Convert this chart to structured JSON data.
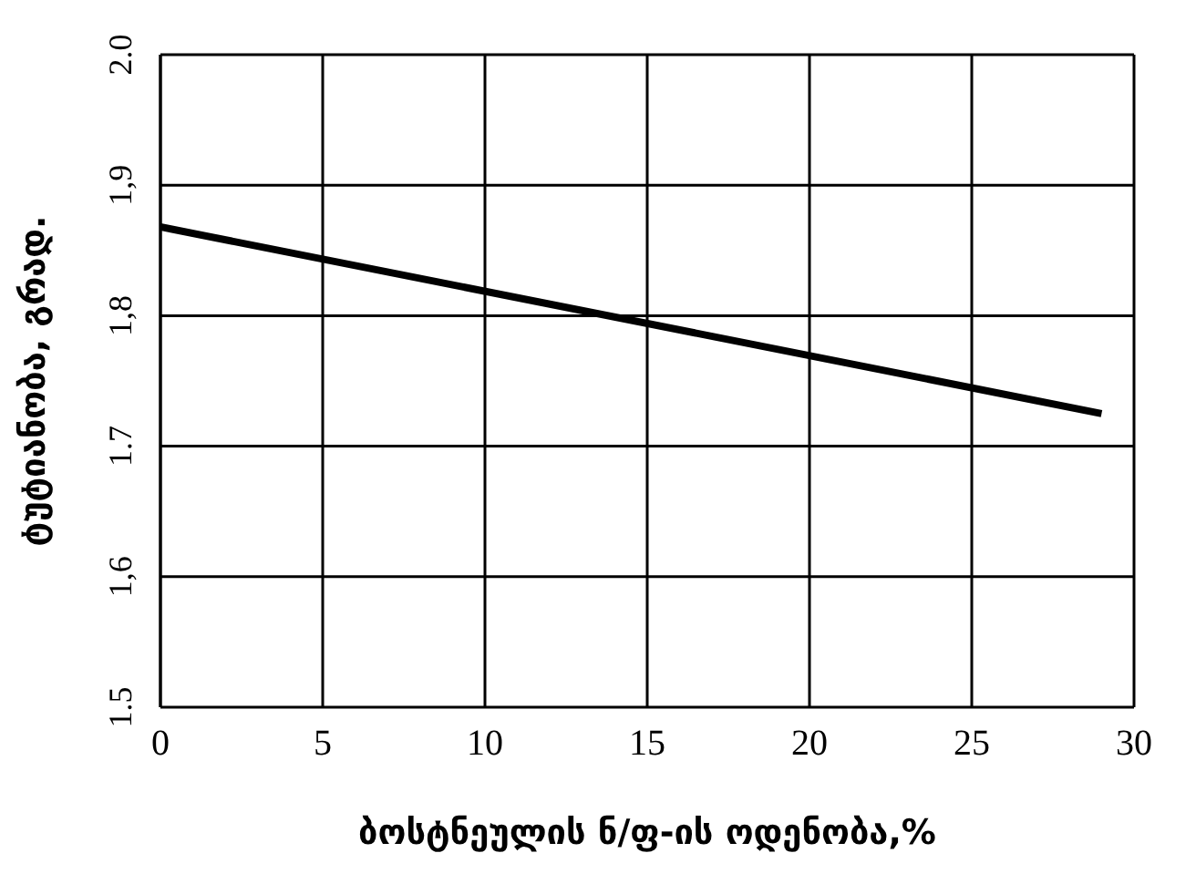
{
  "chart_data": {
    "type": "line",
    "xlabel": "ბოსტნეულის ნ/ფ-ის ოდენობა,%",
    "ylabel": "ტუტიანობა, გრად.",
    "x": [
      0,
      29
    ],
    "series": [
      {
        "color": "#000000",
        "values": [
          1.868,
          1.725
        ]
      }
    ],
    "xlim": [
      0,
      30
    ],
    "xticks": [
      0,
      5,
      10,
      15,
      20,
      25,
      30
    ],
    "ylim": [
      1.5,
      2.0
    ],
    "yticks": [
      {
        "value": 1.5,
        "label": "1.5"
      },
      {
        "value": 1.6,
        "label": "1,6"
      },
      {
        "value": 1.7,
        "label": "1.7"
      },
      {
        "value": 1.8,
        "label": "1,8"
      },
      {
        "value": 1.9,
        "label": "1,9"
      },
      {
        "value": 2.0,
        "label": "2.0"
      }
    ],
    "grid": true,
    "legend": false,
    "marker": "none",
    "line_style": "solid"
  }
}
